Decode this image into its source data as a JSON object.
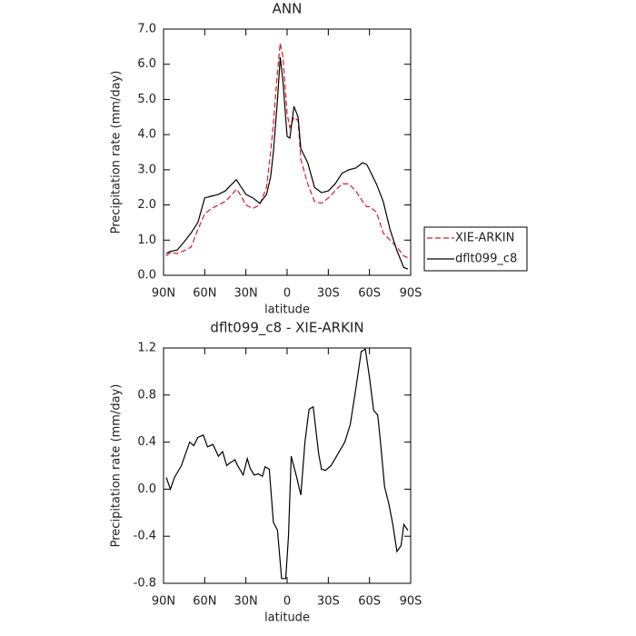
{
  "chart_data": [
    {
      "type": "line",
      "title": "ANN",
      "xlabel": "latitude",
      "ylabel": "Precipitation rate (mm/day)",
      "xlim": [
        90,
        -90
      ],
      "xticks": [
        {
          "value": 90,
          "label": "90N"
        },
        {
          "value": 60,
          "label": "60N"
        },
        {
          "value": 30,
          "label": "30N"
        },
        0,
        {
          "value": -30,
          "label": "30S"
        },
        {
          "value": -60,
          "label": "60S"
        },
        {
          "value": -90,
          "label": "90S"
        }
      ],
      "ylim": [
        0,
        7
      ],
      "yticks": [
        {
          "value": 0,
          "label": "0.0"
        },
        {
          "value": 1,
          "label": "1.0"
        },
        {
          "value": 2,
          "label": "2.0"
        },
        {
          "value": 3,
          "label": "3.0"
        },
        {
          "value": 4,
          "label": "4.0"
        },
        {
          "value": 5,
          "label": "5.0"
        },
        {
          "value": 6,
          "label": "6.0"
        },
        {
          "value": 7,
          "label": "7.0"
        }
      ],
      "legend": "right",
      "x": [
        88,
        85,
        80,
        75,
        70,
        65,
        60,
        55,
        50,
        45,
        40,
        37,
        35,
        30,
        25,
        20,
        15,
        12,
        10,
        7,
        5,
        3,
        0,
        -2,
        -5,
        -8,
        -10,
        -15,
        -20,
        -25,
        -30,
        -35,
        -40,
        -45,
        -50,
        -55,
        -58,
        -60,
        -65,
        -70,
        -75,
        -80,
        -85,
        -88
      ],
      "series": [
        {
          "name": "XIE-ARKIN",
          "color": "#e0191e",
          "linestyle": "dashed",
          "values": [
            0.55,
            0.65,
            0.62,
            0.7,
            0.8,
            1.3,
            1.75,
            1.9,
            2.0,
            2.1,
            2.3,
            2.45,
            2.35,
            2.0,
            1.9,
            2.0,
            2.5,
            3.5,
            4.3,
            5.8,
            6.6,
            6.2,
            4.6,
            4.2,
            4.5,
            4.4,
            3.3,
            2.6,
            2.1,
            2.05,
            2.2,
            2.4,
            2.6,
            2.6,
            2.4,
            2.1,
            1.95,
            1.95,
            1.8,
            1.2,
            1.0,
            0.8,
            0.55,
            0.5
          ]
        },
        {
          "name": "dflt099_c8",
          "color": "#000000",
          "linestyle": "solid",
          "values": [
            0.62,
            0.68,
            0.72,
            0.95,
            1.2,
            1.5,
            2.2,
            2.25,
            2.3,
            2.4,
            2.6,
            2.72,
            2.6,
            2.3,
            2.2,
            2.05,
            2.3,
            2.8,
            3.5,
            5.0,
            6.2,
            5.5,
            3.95,
            3.9,
            4.8,
            4.5,
            3.6,
            3.2,
            2.5,
            2.35,
            2.4,
            2.6,
            2.9,
            3.0,
            3.05,
            3.2,
            3.15,
            3.0,
            2.6,
            2.1,
            1.3,
            0.7,
            0.22,
            0.18
          ]
        }
      ]
    },
    {
      "type": "line",
      "title": "dflt099_c8  -  XIE-ARKIN",
      "xlabel": "latitude",
      "ylabel": "Precipitation rate (mm/day)",
      "xlim": [
        90,
        -90
      ],
      "xticks": [
        {
          "value": 90,
          "label": "90N"
        },
        {
          "value": 60,
          "label": "60N"
        },
        {
          "value": 30,
          "label": "30N"
        },
        0,
        {
          "value": -30,
          "label": "30S"
        },
        {
          "value": -60,
          "label": "60S"
        },
        {
          "value": -90,
          "label": "90S"
        }
      ],
      "ylim": [
        -0.8,
        1.2
      ],
      "yticks": [
        -0.8,
        -0.4,
        {
          "value": 0,
          "label": "0.0"
        },
        0.4,
        0.8,
        1.2
      ],
      "x": [
        88,
        85,
        82,
        77,
        71,
        68,
        65,
        61,
        58,
        54,
        50,
        47,
        44,
        42,
        38,
        36,
        32,
        29,
        27,
        24,
        21,
        18,
        16,
        13,
        10,
        7,
        4,
        1,
        -1,
        -3,
        -7,
        -10,
        -13,
        -16,
        -19,
        -21,
        -23,
        -25,
        -28,
        -32,
        -37,
        -42,
        -46,
        -50,
        -54,
        -57,
        -60,
        -63,
        -66,
        -68,
        -71,
        -74,
        -77,
        -80,
        -83,
        -85,
        -88
      ],
      "series": [
        {
          "color": "#000000",
          "linestyle": "solid",
          "values": [
            0.1,
            0.0,
            0.1,
            0.2,
            0.4,
            0.37,
            0.44,
            0.46,
            0.36,
            0.38,
            0.28,
            0.32,
            0.2,
            0.22,
            0.25,
            0.2,
            0.12,
            0.26,
            0.18,
            0.12,
            0.13,
            0.11,
            0.19,
            0.17,
            -0.28,
            -0.35,
            -0.76,
            -0.76,
            -0.4,
            0.28,
            0.1,
            -0.05,
            0.4,
            0.68,
            0.7,
            0.5,
            0.3,
            0.17,
            0.16,
            0.2,
            0.3,
            0.4,
            0.55,
            0.85,
            1.17,
            1.19,
            0.95,
            0.67,
            0.63,
            0.4,
            0.02,
            -0.12,
            -0.3,
            -0.53,
            -0.48,
            -0.3,
            -0.35
          ]
        }
      ]
    }
  ]
}
